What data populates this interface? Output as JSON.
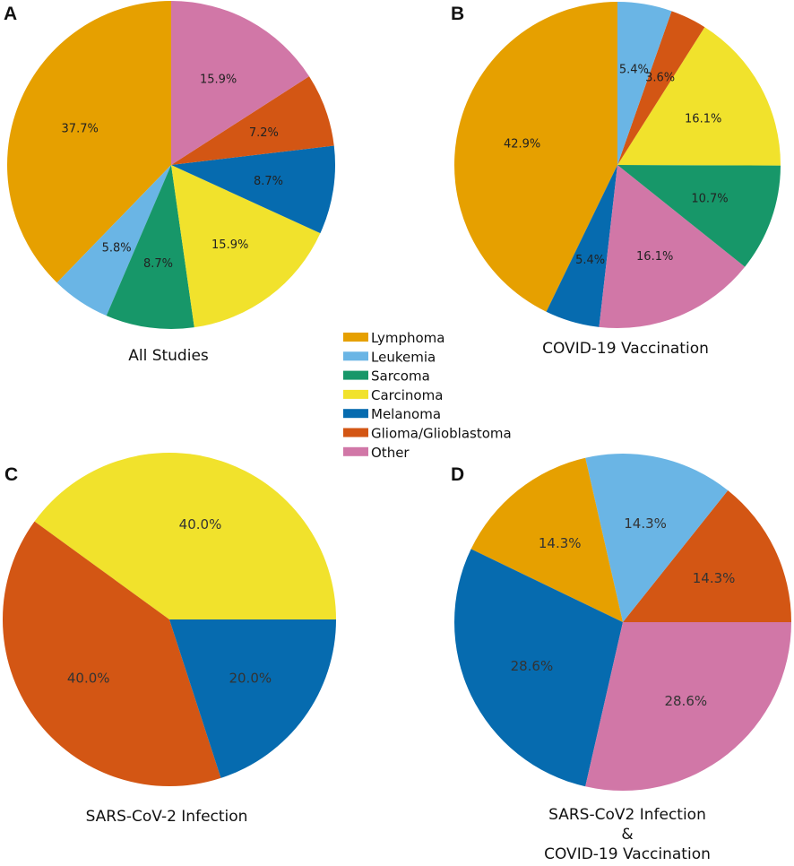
{
  "chart_data": [
    {
      "type": "pie",
      "panel": "A",
      "title": "All Studies",
      "start_angle_deg": 90,
      "slices": [
        {
          "label": "Lymphoma",
          "value": 37.7,
          "text": "37.7%"
        },
        {
          "label": "Leukemia",
          "value": 5.8,
          "text": "5.8%"
        },
        {
          "label": "Sarcoma",
          "value": 8.7,
          "text": "8.7%"
        },
        {
          "label": "Carcinoma",
          "value": 15.9,
          "text": "15.9%"
        },
        {
          "label": "Melanoma",
          "value": 8.7,
          "text": "8.7%"
        },
        {
          "label": "Glioma/Glioblastoma",
          "value": 7.2,
          "text": "7.2%"
        },
        {
          "label": "Other",
          "value": 15.9,
          "text": "15.9%"
        }
      ]
    },
    {
      "type": "pie",
      "panel": "B",
      "title": "COVID-19 Vaccination",
      "start_angle_deg": 90,
      "slices": [
        {
          "label": "Lymphoma",
          "value": 42.9,
          "text": "42.9%"
        },
        {
          "label": "Melanoma",
          "value": 5.4,
          "text": "5.4%"
        },
        {
          "label": "Other",
          "value": 16.1,
          "text": "16.1%"
        },
        {
          "label": "Sarcoma",
          "value": 10.7,
          "text": "10.7%"
        },
        {
          "label": "Carcinoma",
          "value": 16.1,
          "text": "16.1%"
        },
        {
          "label": "Glioma/Glioblastoma",
          "value": 3.6,
          "text": "3.6%"
        },
        {
          "label": "Leukemia",
          "value": 5.4,
          "text": "5.4%"
        }
      ]
    },
    {
      "type": "pie",
      "panel": "C",
      "title": "SARS-CoV-2 Infection",
      "start_angle_deg": 0,
      "slices": [
        {
          "label": "Carcinoma",
          "value": 40.0,
          "text": "40.0%"
        },
        {
          "label": "Glioma/Glioblastoma",
          "value": 40.0,
          "text": "40.0%"
        },
        {
          "label": "Melanoma",
          "value": 20.0,
          "text": "20.0%"
        }
      ]
    },
    {
      "type": "pie",
      "panel": "D",
      "title_lines": [
        "SARS-CoV2 Infection",
        "&",
        "COVID-19 Vaccination"
      ],
      "start_angle_deg": 0,
      "slices": [
        {
          "label": "Glioma/Glioblastoma",
          "value": 14.3,
          "text": "14.3%"
        },
        {
          "label": "Leukemia",
          "value": 14.3,
          "text": "14.3%"
        },
        {
          "label": "Lymphoma",
          "value": 14.3,
          "text": "14.3%"
        },
        {
          "label": "Melanoma",
          "value": 28.6,
          "text": "28.6%"
        },
        {
          "label": "Other",
          "value": 28.6,
          "text": "28.6%"
        }
      ]
    }
  ],
  "legend": {
    "placement": "center",
    "items": [
      {
        "label": "Lymphoma",
        "color": "#E6A000"
      },
      {
        "label": "Leukemia",
        "color": "#6AB5E5"
      },
      {
        "label": "Sarcoma",
        "color": "#179769"
      },
      {
        "label": "Carcinoma",
        "color": "#F1E22C"
      },
      {
        "label": "Melanoma",
        "color": "#066BAF"
      },
      {
        "label": "Glioma/Glioblastoma",
        "color": "#D35614"
      },
      {
        "label": "Other",
        "color": "#D177A7"
      }
    ]
  }
}
